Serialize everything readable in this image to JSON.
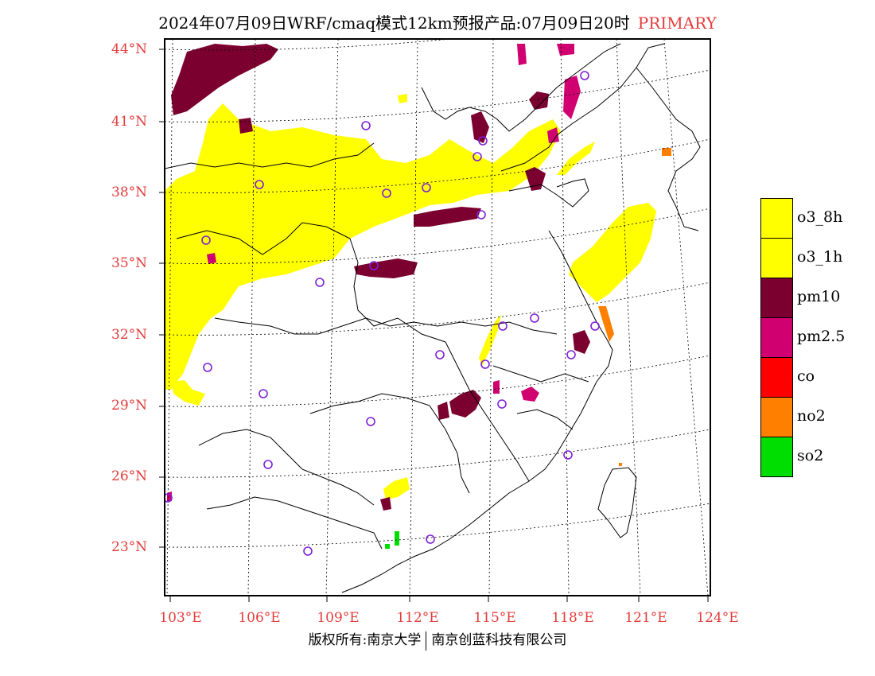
{
  "title": {
    "main": "2024年07月09日WRF/cmaq模式12km预报产品:07月09日20时",
    "tag": "PRIMARY",
    "tag_color": "#e43c3c"
  },
  "axes": {
    "lat_labels": [
      "44°N",
      "41°N",
      "38°N",
      "35°N",
      "32°N",
      "29°N",
      "26°N",
      "23°N"
    ],
    "lon_labels": [
      "103°E",
      "106°E",
      "109°E",
      "112°E",
      "115°E",
      "118°E",
      "121°E",
      "124°E"
    ]
  },
  "legend": [
    {
      "label": "o3_8h",
      "color": "#ffff00"
    },
    {
      "label": "o3_1h",
      "color": "#ffff00"
    },
    {
      "label": "pm10",
      "color": "#7b0030"
    },
    {
      "label": "pm2.5",
      "color": "#d00070"
    },
    {
      "label": "co",
      "color": "#ff0000"
    },
    {
      "label": "no2",
      "color": "#ff7f00"
    },
    {
      "label": "so2",
      "color": "#00dd00"
    }
  ],
  "stations_color": "#7d20d8",
  "footer": {
    "left": "版权所有:南京大学",
    "right": "南京创蓝科技有限公司"
  }
}
